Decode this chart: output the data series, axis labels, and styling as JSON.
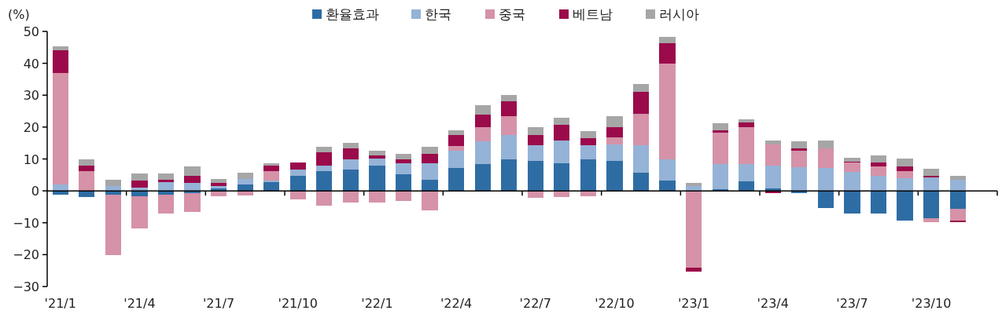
{
  "chart_data": {
    "type": "bar",
    "ylabel": "(%)",
    "stacked": true,
    "legend": "top",
    "ylim": [
      -30,
      50
    ],
    "yticks": [
      {
        "value": -30,
        "label": "−30"
      },
      {
        "value": -20,
        "label": "−20"
      },
      {
        "value": -10,
        "label": "−10"
      },
      0,
      10,
      20,
      30,
      40,
      50
    ],
    "categories": [
      "'21/1",
      null,
      null,
      "'21/4",
      null,
      null,
      "'21/7",
      null,
      null,
      "'21/10",
      null,
      null,
      "'22/1",
      null,
      null,
      "'22/4",
      null,
      null,
      "'22/7",
      null,
      null,
      "'22/10",
      null,
      null,
      "'23/1",
      null,
      null,
      "'23/4",
      null,
      null,
      "'23/7",
      null,
      null,
      "'23/10",
      null,
      null
    ],
    "series": [
      {
        "name": "환율효과",
        "color": "#2e6da4",
        "values": [
          -1.3,
          -1.9,
          -1.1,
          -1.6,
          -1.1,
          -0.8,
          0.7,
          2.1,
          2.8,
          4.6,
          6.1,
          6.8,
          7.8,
          5.1,
          3.4,
          7.2,
          8.5,
          9.8,
          9.3,
          8.7,
          9.8,
          9.3,
          5.8,
          3.3,
          0,
          0.6,
          2.9,
          0.8,
          -0.7,
          -5.5,
          -7.0,
          -7.2,
          -9.4,
          -8.6,
          -5.7,
          null
        ]
      },
      {
        "name": "한국",
        "color": "#95b3d7",
        "values": [
          1.9,
          0,
          1.6,
          1.1,
          2.7,
          2.4,
          0.9,
          1.7,
          0.5,
          2.0,
          1.7,
          3.1,
          2.4,
          3.5,
          5.2,
          5.3,
          7.0,
          7.6,
          5.0,
          7.1,
          4.6,
          5.2,
          8.5,
          6.7,
          1.6,
          7.8,
          5.6,
          7.0,
          7.3,
          7.1,
          6.0,
          4.6,
          3.9,
          4.3,
          3.4,
          null
        ]
      },
      {
        "name": "중국",
        "color": "#d592a8",
        "values": [
          35.0,
          6.1,
          -19.0,
          -10.3,
          -6.0,
          -5.9,
          -1.8,
          -1.4,
          3.0,
          -2.7,
          -4.7,
          -3.6,
          -3.7,
          -3.2,
          -6.2,
          1.5,
          4.4,
          5.9,
          -2.3,
          -1.9,
          -1.6,
          2.3,
          9.9,
          29.8,
          -24.2,
          9.8,
          11.4,
          6.8,
          5.3,
          6.2,
          2.9,
          3.0,
          2.2,
          -1.2,
          -3.5,
          null
        ]
      },
      {
        "name": "베트남",
        "color": "#9b0a4b",
        "values": [
          7.2,
          1.7,
          0,
          2.2,
          0.8,
          2.4,
          1.0,
          0,
          1.5,
          2.3,
          4.4,
          3.5,
          1.0,
          1.4,
          3.1,
          3.6,
          3.9,
          4.7,
          3.3,
          4.9,
          2.2,
          3.2,
          6.9,
          6.5,
          -1.1,
          0.8,
          1.6,
          -0.8,
          0.8,
          0,
          0.3,
          1.3,
          1.6,
          0.5,
          -0.7,
          null
        ]
      },
      {
        "name": "러시아",
        "color": "#a6a6a6",
        "values": [
          1.2,
          2.1,
          1.8,
          2.1,
          2.0,
          2.8,
          1.2,
          1.8,
          0.9,
          0,
          1.7,
          1.6,
          1.3,
          1.5,
          2.2,
          1.5,
          3.0,
          2.1,
          2.3,
          2.3,
          2.2,
          3.4,
          2.3,
          2.0,
          0.9,
          2.2,
          0.9,
          1.2,
          2.2,
          2.4,
          1.1,
          2.2,
          2.5,
          2.1,
          1.3,
          null
        ]
      }
    ]
  }
}
